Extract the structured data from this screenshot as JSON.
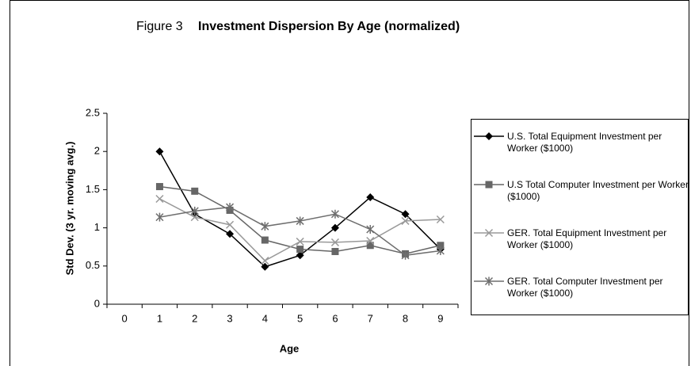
{
  "chart_data": {
    "type": "line",
    "figure_label": "Figure 3",
    "title": "Investment Dispersion By Age (normalized)",
    "x_label": "Age",
    "y_label": "Std Dev. (3 yr. moving avg.)",
    "categories": [
      "0",
      "1",
      "2",
      "3",
      "4",
      "5",
      "6",
      "7",
      "8",
      "9"
    ],
    "ylim": [
      0,
      2.5
    ],
    "yticks": [
      0,
      0.5,
      1,
      1.5,
      2,
      2.5
    ],
    "grid": false,
    "legend": "right",
    "series": [
      {
        "name": "U.S. Total Equipment Investment per Worker ($1000)",
        "color": "#000000",
        "marker": "diamond",
        "values": [
          null,
          2.0,
          1.18,
          0.92,
          0.49,
          0.64,
          1.0,
          1.4,
          1.18,
          0.72
        ]
      },
      {
        "name": "U.S Total Computer Investment per Worker ($1000)",
        "color": "#666666",
        "marker": "square",
        "values": [
          null,
          1.54,
          1.48,
          1.23,
          0.84,
          0.72,
          0.69,
          0.77,
          0.66,
          0.77
        ]
      },
      {
        "name": "GER. Total Equipment Investment per Worker ($1000)",
        "color": "#999999",
        "marker": "x",
        "values": [
          null,
          1.38,
          1.14,
          1.04,
          0.57,
          0.82,
          0.81,
          0.83,
          1.09,
          1.11
        ]
      },
      {
        "name": "GER. Total Computer Investment per Worker ($1000)",
        "color": "#6e6e6e",
        "marker": "asterisk",
        "values": [
          null,
          1.14,
          1.22,
          1.27,
          1.02,
          1.09,
          1.18,
          0.98,
          0.64,
          0.7
        ]
      }
    ]
  }
}
